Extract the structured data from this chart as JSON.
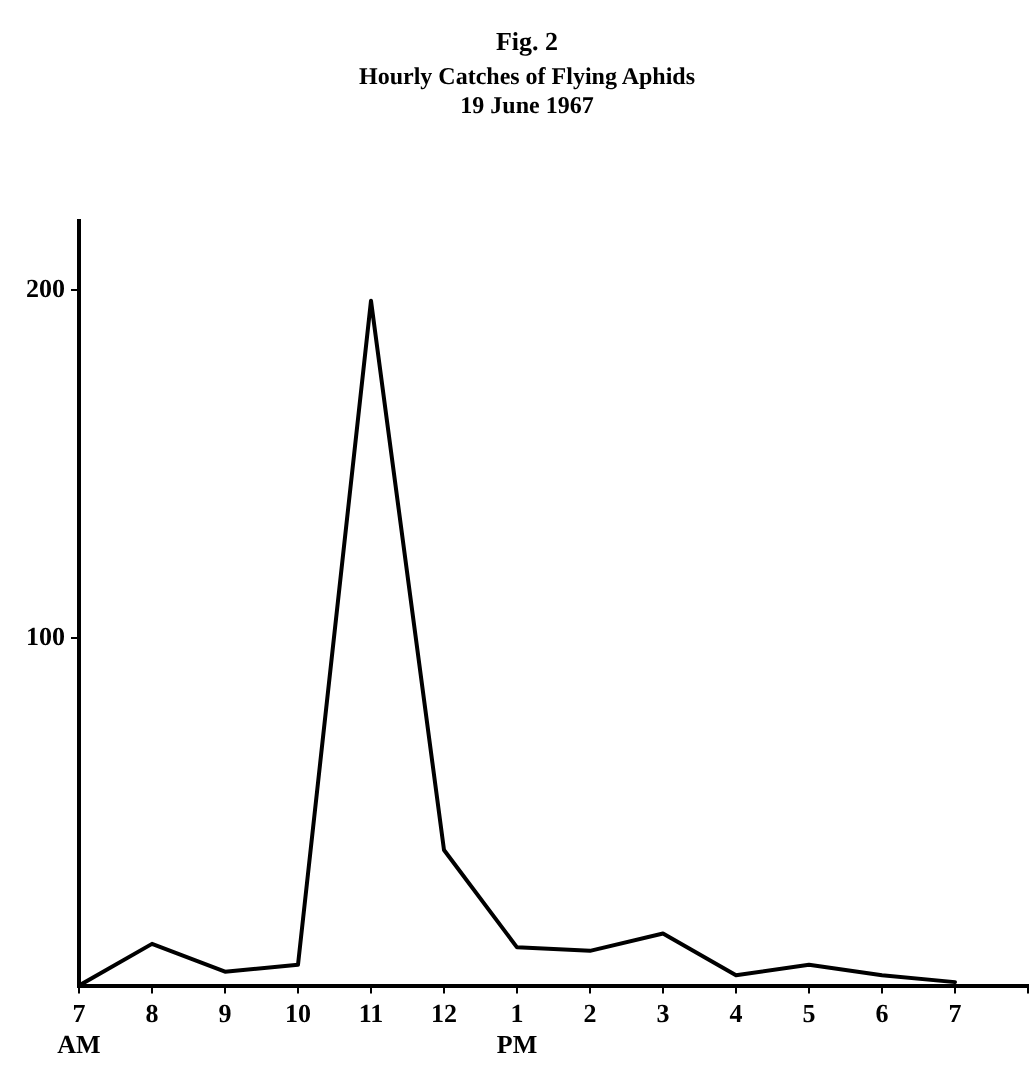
{
  "chart_data": {
    "type": "line",
    "title": "Fig. 2",
    "subtitle": "Hourly Catches of Flying Aphids\n19 June 1967",
    "categories": [
      "7\nAM",
      "8",
      "9",
      "10",
      "11",
      "12",
      "1\nPM",
      "2",
      "3",
      "4",
      "5",
      "6",
      "7",
      null
    ],
    "series": [
      {
        "color": "#000000",
        "values": [
          0,
          12,
          4,
          6,
          197,
          39,
          11,
          10,
          15,
          3,
          6,
          3,
          1,
          null
        ]
      }
    ],
    "ylim": [
      0,
      220
    ],
    "yticks": [
      100,
      200
    ],
    "grid": false,
    "legend": false,
    "marker": "none",
    "line_style": "solid"
  }
}
